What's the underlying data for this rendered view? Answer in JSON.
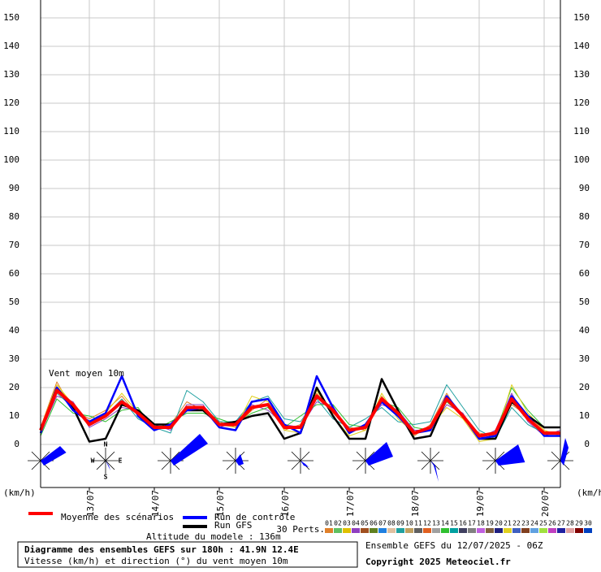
{
  "chart_data": {
    "type": "line",
    "unit_left": "(km/h)",
    "unit_right": "(km/h)",
    "annotation": "Vent moyen 10m",
    "x": [
      0,
      6,
      12,
      18,
      24,
      30,
      36,
      42,
      48,
      54,
      60,
      66,
      72,
      78,
      84,
      90,
      96,
      102,
      108,
      114,
      120,
      126,
      132,
      138,
      144,
      150,
      156,
      162,
      168,
      174,
      180,
      186,
      192
    ],
    "xlim": [
      0,
      192
    ],
    "xticks": [
      {
        "value": 18,
        "label": "13/07"
      },
      {
        "value": 42,
        "label": "14/07"
      },
      {
        "value": 66,
        "label": "15/07"
      },
      {
        "value": 90,
        "label": "16/07"
      },
      {
        "value": 114,
        "label": "17/07"
      },
      {
        "value": 138,
        "label": "18/07"
      },
      {
        "value": 162,
        "label": "19/07"
      },
      {
        "value": 186,
        "label": "20/07"
      }
    ],
    "ylim": [
      0,
      150
    ],
    "yticks": [
      0,
      10,
      20,
      30,
      40,
      50,
      60,
      70,
      80,
      90,
      100,
      110,
      120,
      130,
      140,
      150
    ],
    "grid": true,
    "perturbations": [
      {
        "name": "01",
        "color": "#e0802a",
        "values": [
          6,
          22,
          12,
          9,
          12,
          17,
          10,
          5,
          7,
          15,
          12,
          8,
          6,
          12,
          16,
          5,
          7,
          18,
          11,
          6,
          5,
          17,
          10,
          3,
          7,
          18,
          9,
          4,
          3,
          14,
          10,
          5,
          3
        ]
      },
      {
        "name": "04",
        "color": "#9040c0",
        "values": [
          4,
          17,
          15,
          6,
          9,
          13,
          12,
          7,
          5,
          14,
          14,
          6,
          8,
          14,
          12,
          7,
          6,
          15,
          13,
          4,
          7,
          14,
          12,
          5,
          5,
          14,
          11,
          2,
          5,
          18,
          8,
          3,
          5
        ]
      },
      {
        "name": "09",
        "color": "#20a0a0",
        "values": [
          5,
          18,
          13,
          8,
          10,
          16,
          9,
          6,
          4,
          19,
          15,
          8,
          8,
          15,
          17,
          9,
          8,
          16,
          9,
          6,
          9,
          13,
          8,
          7,
          8,
          21,
          13,
          5,
          2,
          13,
          7,
          4,
          4
        ]
      },
      {
        "name": "14",
        "color": "#30c030",
        "values": [
          3,
          16,
          11,
          10,
          8,
          12,
          13,
          5,
          8,
          11,
          11,
          9,
          7,
          11,
          13,
          6,
          10,
          14,
          14,
          7,
          6,
          15,
          13,
          6,
          5,
          15,
          10,
          3,
          4,
          20,
          12,
          6,
          6
        ]
      },
      {
        "name": "21",
        "color": "#e0d020",
        "values": [
          6,
          21,
          14,
          7,
          11,
          18,
          11,
          6,
          6,
          12,
          12,
          7,
          6,
          17,
          15,
          5,
          4,
          19,
          10,
          3,
          5,
          18,
          9,
          4,
          6,
          13,
          9,
          1,
          2,
          21,
          11,
          5,
          3
        ]
      }
    ],
    "series": [
      {
        "name": "Run GFS",
        "color": "#000000",
        "values": [
          5,
          20,
          13,
          1,
          2,
          14,
          12,
          7,
          7,
          12,
          12,
          7,
          8,
          10,
          11,
          2,
          4,
          20,
          10,
          2,
          2,
          23,
          12,
          2,
          3,
          16,
          10,
          2,
          2,
          15,
          10,
          6,
          6
        ]
      },
      {
        "name": "Run de contrôle",
        "color": "#0000ff",
        "values": [
          4,
          20,
          12,
          8,
          11,
          24,
          10,
          5,
          7,
          12,
          13,
          6,
          5,
          15,
          16,
          7,
          4,
          24,
          13,
          4,
          7,
          15,
          10,
          4,
          5,
          17,
          10,
          2,
          3,
          17,
          10,
          3,
          3
        ]
      },
      {
        "name": "Moyenne des scénarios",
        "color": "#ff0000",
        "values": [
          5,
          19,
          14,
          7,
          10,
          15,
          11,
          6,
          6,
          13,
          13,
          7,
          7,
          13,
          14,
          6,
          6,
          17,
          12,
          5,
          6,
          16,
          11,
          4,
          6,
          16,
          10,
          3,
          4,
          16,
          9,
          4,
          4
        ]
      }
    ],
    "perturbations_label": "30 Perts.",
    "perturbation_legend": [
      {
        "label": "01",
        "color": "#e0802a"
      },
      {
        "label": "02",
        "color": "#60c060"
      },
      {
        "label": "03",
        "color": "#e0c000"
      },
      {
        "label": "04",
        "color": "#9040c0"
      },
      {
        "label": "05",
        "color": "#a05020"
      },
      {
        "label": "06",
        "color": "#608020"
      },
      {
        "label": "07",
        "color": "#2080e0"
      },
      {
        "label": "08",
        "color": "#e0c0a0"
      },
      {
        "label": "09",
        "color": "#20a0a0"
      },
      {
        "label": "10",
        "color": "#c0a060"
      },
      {
        "label": "11",
        "color": "#606060"
      },
      {
        "label": "12",
        "color": "#e06020"
      },
      {
        "label": "13",
        "color": "#a0a0a0"
      },
      {
        "label": "14",
        "color": "#30c030"
      },
      {
        "label": "15",
        "color": "#00a0a0"
      },
      {
        "label": "16",
        "color": "#404060"
      },
      {
        "label": "17",
        "color": "#808080"
      },
      {
        "label": "18",
        "color": "#c060e0"
      },
      {
        "label": "19",
        "color": "#806040"
      },
      {
        "label": "20",
        "color": "#202080"
      },
      {
        "label": "21",
        "color": "#e0d020"
      },
      {
        "label": "22",
        "color": "#4060c0"
      },
      {
        "label": "23",
        "color": "#804020"
      },
      {
        "label": "24",
        "color": "#60a0e0"
      },
      {
        "label": "25",
        "color": "#a0e040"
      },
      {
        "label": "26",
        "color": "#c040c0"
      },
      {
        "label": "27",
        "color": "#2020a0"
      },
      {
        "label": "28",
        "color": "#e0a0a0"
      },
      {
        "label": "29",
        "color": "#800000"
      },
      {
        "label": "30",
        "color": "#0040c0"
      }
    ],
    "compass": {
      "n": "N",
      "e": "E",
      "s": "S",
      "w": "W"
    },
    "altitude": "Altitude du modele : 136m",
    "title": "Diagramme des ensembles GEFS sur 180h : 41.9N 12.4E",
    "subtitle": "Vitesse (km/h) et direction (°) du vent moyen 10m",
    "run_info": "Ensemble GEFS du 12/07/2025 - 06Z",
    "copyright": "Copyright 2025 Meteociel.fr"
  }
}
